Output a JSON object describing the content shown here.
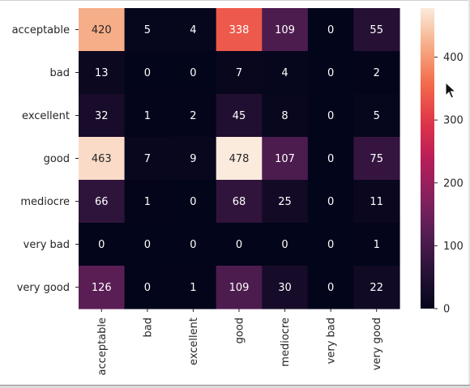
{
  "chart_data": {
    "type": "heatmap",
    "rows": [
      "acceptable",
      "bad",
      "excellent",
      "good",
      "mediocre",
      "very bad",
      "very good"
    ],
    "columns": [
      "acceptable",
      "bad",
      "excellent",
      "good",
      "mediocre",
      "very bad",
      "very good"
    ],
    "values": [
      [
        420,
        5,
        4,
        338,
        109,
        0,
        55
      ],
      [
        13,
        0,
        0,
        7,
        4,
        0,
        2
      ],
      [
        32,
        1,
        2,
        45,
        8,
        0,
        5
      ],
      [
        463,
        7,
        9,
        478,
        107,
        0,
        75
      ],
      [
        66,
        1,
        0,
        68,
        25,
        0,
        11
      ],
      [
        0,
        0,
        0,
        0,
        0,
        0,
        1
      ],
      [
        126,
        0,
        1,
        109,
        30,
        0,
        22
      ]
    ],
    "colorbar": {
      "min": 0,
      "max": 478,
      "ticks": [
        0,
        100,
        200,
        300,
        400
      ],
      "colormap": "rocket"
    },
    "title": "",
    "xlabel": "",
    "ylabel": ""
  },
  "cursor": {
    "icon": "mouse-pointer-icon"
  }
}
